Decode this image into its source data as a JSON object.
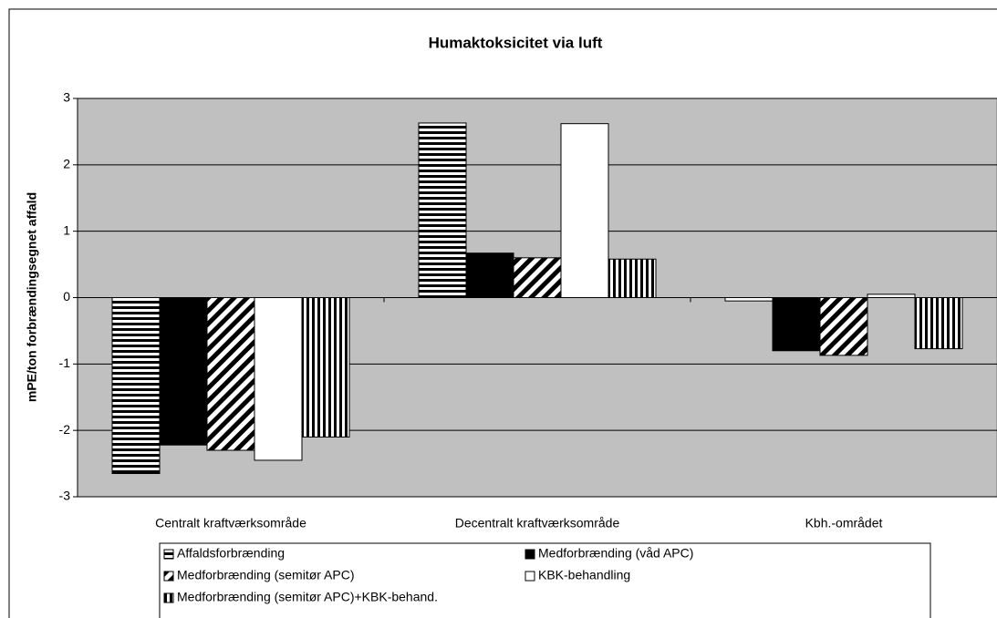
{
  "chart_data": {
    "type": "bar",
    "title": "Humaktoksicitet via luft",
    "y_label": "mPE/ton forbrændingsegnet affald",
    "categories": [
      "Centralt kraftværksområde",
      "Decentralt kraftværksområde",
      "Kbh.-området"
    ],
    "series": [
      {
        "name": "Affaldsforbrænding",
        "color": "#000000",
        "pattern": "horizontal",
        "values": [
          -2.65,
          2.63,
          -0.05
        ]
      },
      {
        "name": "Medforbrænding (våd APC)",
        "color": "#000000",
        "pattern": "solid",
        "values": [
          -2.22,
          0.67,
          -0.8
        ]
      },
      {
        "name": "Medforbrænding (semitør APC)",
        "color": "#000000",
        "pattern": "diagonal",
        "values": [
          -2.3,
          0.6,
          -0.87
        ]
      },
      {
        "name": "KBK-behandling",
        "color": "#ffffff",
        "pattern": "solid",
        "values": [
          -2.45,
          2.62,
          0.05
        ]
      },
      {
        "name": "Medforbrænding (semitør APC)+KBK-behand.",
        "color": "#000000",
        "pattern": "vertical",
        "values": [
          -2.1,
          0.58,
          -0.77
        ]
      }
    ],
    "ylim": [
      -3,
      3
    ],
    "yticks": [
      -3,
      -2,
      -1,
      0,
      1,
      2,
      3
    ],
    "grid": true,
    "legend": "bottom"
  }
}
